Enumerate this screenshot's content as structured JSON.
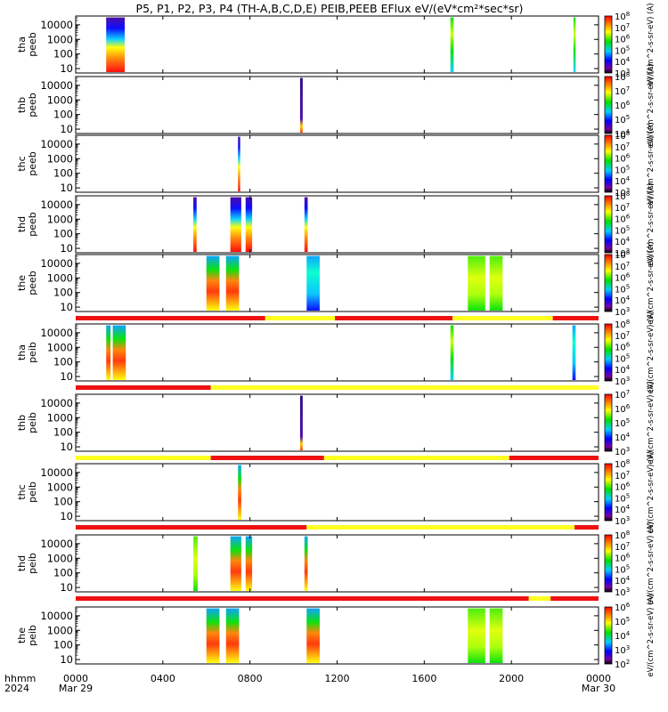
{
  "title": "P5, P1, P2, P3, P4 (TH-A,B,C,D,E) PEIB,PEEB EFlux eV/(eV*cm²*sec*sr)",
  "colors": {
    "flag_red": "#ee1111",
    "flag_yellow": "#ffff22",
    "axis": "#000000"
  },
  "chart_data": {
    "type": "heatmap",
    "time_axis": {
      "unit": "hhmm",
      "range_hours": [
        0,
        24
      ],
      "ticks": [
        {
          "h": 0,
          "label": "0000",
          "sub": "Mar 29"
        },
        {
          "h": 4,
          "label": "0400",
          "sub": ""
        },
        {
          "h": 8,
          "label": "0800",
          "sub": ""
        },
        {
          "h": 12,
          "label": "1200",
          "sub": ""
        },
        {
          "h": 16,
          "label": "1600",
          "sub": ""
        },
        {
          "h": 20,
          "label": "2000",
          "sub": ""
        },
        {
          "h": 24,
          "label": "0000",
          "sub": "Mar 30"
        }
      ],
      "row_label_1": "hhmm",
      "row_label_2": "2024"
    },
    "energy_axis": {
      "scale": "log",
      "range_eV": [
        5,
        40000
      ],
      "ticks": [
        "10",
        "100",
        "1000",
        "10000"
      ]
    },
    "panels": [
      {
        "probe": "tha",
        "product": "peeb",
        "label1": "tha",
        "label2": "peeb",
        "colorbar": {
          "exp_min": 3,
          "exp_max": 8,
          "label": "eV/(cm^2-s-sr-eV) (A)"
        },
        "flag_bar": [],
        "intervals": [
          [
            1.4,
            1.55,
            "l",
            0.5
          ],
          [
            1.55,
            2.25,
            "l",
            0.45
          ],
          [
            17.2,
            17.35,
            "m",
            0.5
          ],
          [
            22.85,
            22.95,
            "m",
            0.5
          ]
        ]
      },
      {
        "probe": "thb",
        "product": "peeb",
        "label1": "thb",
        "label2": "peeb",
        "colorbar": {
          "exp_min": 4,
          "exp_max": 8,
          "label": "eV/(cm^2-s-sr-eV) (A)"
        },
        "flag_bar": [],
        "intervals": [
          [
            10.3,
            10.42,
            "d",
            0.4
          ]
        ]
      },
      {
        "probe": "thc",
        "product": "peeb",
        "label1": "thc",
        "label2": "peeb",
        "colorbar": {
          "exp_min": 3,
          "exp_max": 8,
          "label": "eV/(cm^2-s-sr-eV) (A)"
        },
        "flag_bar": [],
        "intervals": [
          [
            7.45,
            7.55,
            "l",
            0.4
          ]
        ]
      },
      {
        "probe": "thd",
        "product": "peeb",
        "label1": "thd",
        "label2": "peeb",
        "colorbar": {
          "exp_min": 3,
          "exp_max": 8,
          "label": "eV/(cm^2-s-sr-eV) (A)"
        },
        "flag_bar": [],
        "intervals": [
          [
            5.4,
            5.55,
            "l",
            0.45
          ],
          [
            7.1,
            7.6,
            "l",
            0.45
          ],
          [
            7.8,
            8.1,
            "l",
            0.45
          ],
          [
            10.5,
            10.65,
            "l",
            0.45
          ]
        ]
      },
      {
        "probe": "the",
        "product": "peeb",
        "label1": "the",
        "label2": "peeb",
        "colorbar": {
          "exp_min": 3,
          "exp_max": 8,
          "label": "eV/(cm^2-s-sr-eV) (A)"
        },
        "flag_bar": [
          [
            0,
            8.7,
            "r"
          ],
          [
            8.7,
            11.9,
            "y"
          ],
          [
            11.9,
            17.3,
            "r"
          ],
          [
            17.3,
            21.9,
            "y"
          ],
          [
            21.9,
            24,
            "r"
          ]
        ],
        "intervals": [
          [
            6.0,
            6.6,
            "h",
            0.45
          ],
          [
            6.9,
            7.5,
            "h",
            0.45
          ],
          [
            10.6,
            11.2,
            "c",
            0.4
          ],
          [
            18.0,
            18.8,
            "g",
            0.4
          ],
          [
            19.0,
            19.6,
            "g",
            0.4
          ]
        ]
      },
      {
        "probe": "tha",
        "product": "peib",
        "label1": "tha",
        "label2": "peib",
        "colorbar": {
          "exp_min": 3,
          "exp_max": 8,
          "label": "eV/(cm^2-s-sr-eV) (A)"
        },
        "flag_bar": [
          [
            0,
            6.2,
            "r"
          ],
          [
            6.2,
            24,
            "y"
          ]
        ],
        "intervals": [
          [
            1.4,
            1.6,
            "h",
            0.5
          ],
          [
            1.7,
            2.3,
            "h",
            0.5
          ],
          [
            17.2,
            17.35,
            "m",
            0.45
          ],
          [
            22.8,
            22.95,
            "c",
            0.45
          ]
        ]
      },
      {
        "probe": "thb",
        "product": "peib",
        "label1": "thb",
        "label2": "peib",
        "colorbar": {
          "exp_min": 3,
          "exp_max": 7,
          "label": "eV/(cm^2-s-sr-eV) (A)"
        },
        "flag_bar": [
          [
            0,
            6.2,
            "y"
          ],
          [
            6.2,
            11.4,
            "r"
          ],
          [
            11.4,
            19.9,
            "y"
          ],
          [
            19.9,
            24,
            "r"
          ]
        ],
        "intervals": [
          [
            10.3,
            10.42,
            "d",
            0.4
          ]
        ]
      },
      {
        "probe": "thc",
        "product": "peib",
        "label1": "thc",
        "label2": "peib",
        "colorbar": {
          "exp_min": 3,
          "exp_max": 8,
          "label": "eV/(cm^2-s-sr-eV) (A)"
        },
        "flag_bar": [
          [
            0,
            10.6,
            "r"
          ],
          [
            10.6,
            22.9,
            "y"
          ],
          [
            22.9,
            24,
            "r"
          ]
        ],
        "intervals": [
          [
            7.45,
            7.6,
            "h",
            0.35
          ]
        ]
      },
      {
        "probe": "thd",
        "product": "peib",
        "label1": "thd",
        "label2": "peib",
        "colorbar": {
          "exp_min": 3,
          "exp_max": 8,
          "label": "eV/(cm^2-s-sr-eV) (A)"
        },
        "flag_bar": [
          [
            0,
            20.8,
            "r"
          ],
          [
            20.8,
            21.8,
            "y"
          ],
          [
            21.8,
            24,
            "r"
          ]
        ],
        "intervals": [
          [
            5.4,
            5.6,
            "g",
            0.45
          ],
          [
            7.1,
            7.6,
            "h",
            0.45
          ],
          [
            7.8,
            8.1,
            "h",
            0.45
          ],
          [
            10.5,
            10.65,
            "h",
            0.45
          ]
        ]
      },
      {
        "probe": "the",
        "product": "peib",
        "label1": "the",
        "label2": "peib",
        "colorbar": {
          "exp_min": 2,
          "exp_max": 6,
          "label": "eV/(cm^2-s-sr-eV) (A)"
        },
        "flag_bar": [],
        "intervals": [
          [
            6.0,
            6.6,
            "h",
            0.45
          ],
          [
            6.9,
            7.5,
            "h",
            0.45
          ],
          [
            10.6,
            11.2,
            "h",
            0.45
          ],
          [
            18.0,
            18.8,
            "g",
            0.4
          ],
          [
            19.0,
            19.6,
            "g",
            0.4
          ]
        ]
      }
    ]
  }
}
